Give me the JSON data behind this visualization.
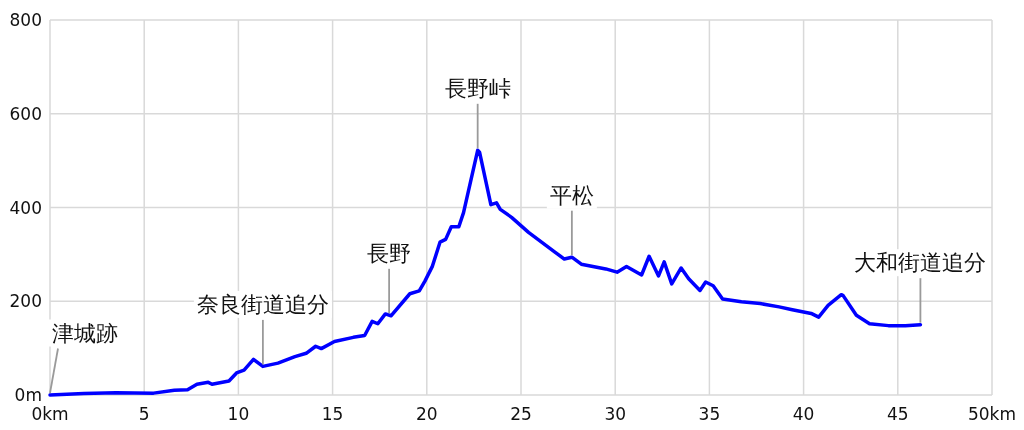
{
  "chart_data": {
    "type": "line",
    "color": "#0000ff",
    "line_style": "solid",
    "grid": true,
    "x": [
      0,
      1.8,
      3.5,
      5.5,
      6.6,
      7.3,
      7.8,
      8.4,
      8.6,
      9.5,
      9.9,
      10.3,
      10.8,
      11.3,
      12.1,
      13,
      13.6,
      14.1,
      14.4,
      15.1,
      16.1,
      16.7,
      17.1,
      17.4,
      17.8,
      18.1,
      19.1,
      19.6,
      19.9,
      20.3,
      20.7,
      21,
      21.3,
      21.7,
      21.95,
      22.7,
      22.8,
      23.4,
      23.7,
      23.9,
      24.5,
      25.4,
      26.8,
      27.3,
      27.7,
      28.2,
      29.5,
      30.1,
      30.6,
      31.4,
      31.8,
      32.3,
      32.6,
      33,
      33.5,
      33.9,
      34.5,
      34.8,
      35.2,
      35.7,
      36.7,
      37.7,
      38.7,
      39.4,
      40.4,
      40.8,
      41.3,
      42,
      42.1,
      42.8,
      43.5,
      44.5,
      45.4,
      46.2
    ],
    "values": [
      0,
      3,
      5,
      4,
      10,
      11,
      23,
      27,
      23,
      30,
      47,
      53,
      76,
      61,
      68,
      82,
      89,
      104,
      99,
      114,
      123,
      127,
      157,
      152,
      173,
      169,
      216,
      222,
      243,
      275,
      326,
      332,
      359,
      359,
      389,
      522,
      518,
      406,
      410,
      396,
      379,
      347,
      305,
      290,
      294,
      279,
      269,
      262,
      274,
      256,
      296,
      254,
      284,
      237,
      271,
      248,
      223,
      241,
      233,
      205,
      199,
      195,
      188,
      182,
      174,
      166,
      191,
      214,
      212,
      170,
      152,
      148,
      148,
      150
    ],
    "xlim": [
      0,
      50
    ],
    "ylim": [
      0,
      800
    ],
    "xticks": [
      {
        "value": 0,
        "label": "0km"
      },
      5,
      10,
      15,
      20,
      25,
      30,
      35,
      40,
      45,
      {
        "value": 50,
        "label": "50km"
      }
    ],
    "yticks": [
      {
        "value": 0,
        "label": "0m"
      },
      200,
      400,
      600,
      800
    ],
    "annotations": [
      {
        "text": "津城跡",
        "x": 0,
        "y": 0
      },
      {
        "text": "奈良街道追分",
        "x": 11.3,
        "y": 61
      },
      {
        "text": "長野",
        "x": 18,
        "y": 170
      },
      {
        "text": "長野峠",
        "x": 22.7,
        "y": 522
      },
      {
        "text": "平松",
        "x": 27.7,
        "y": 294
      },
      {
        "text": "大和街道追分",
        "x": 46.2,
        "y": 150
      }
    ]
  }
}
